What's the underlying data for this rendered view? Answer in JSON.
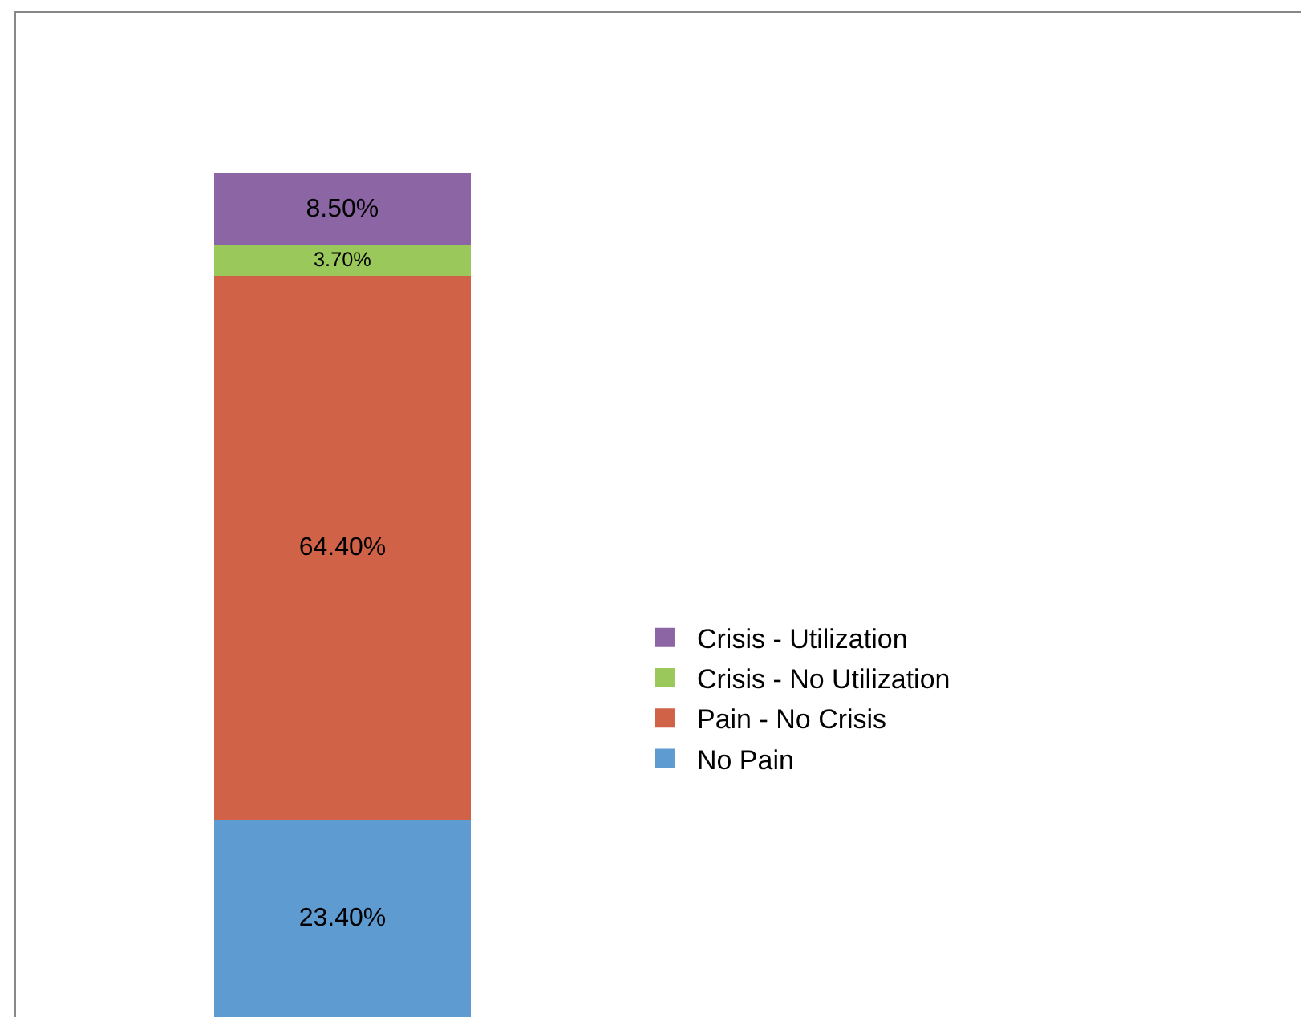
{
  "chart_data": {
    "type": "bar",
    "stacked": true,
    "categories": [
      null
    ],
    "series": [
      {
        "name": "No Pain",
        "color": "#5e9bd1",
        "values": [
          23.4
        ],
        "value_labels": [
          "23.40%"
        ]
      },
      {
        "name": "Pain - No Crisis",
        "color": "#cf6247",
        "values": [
          64.4
        ],
        "value_labels": [
          "64.40%"
        ]
      },
      {
        "name": "Crisis - No Utilization",
        "color": "#9bc85a",
        "values": [
          3.7
        ],
        "value_labels": [
          "3.70%"
        ]
      },
      {
        "name": "Crisis - Utilization",
        "color": "#8c66a4",
        "values": [
          8.5
        ],
        "value_labels": [
          "8.50%"
        ]
      }
    ],
    "legend": "right",
    "tick_labels": false
  }
}
